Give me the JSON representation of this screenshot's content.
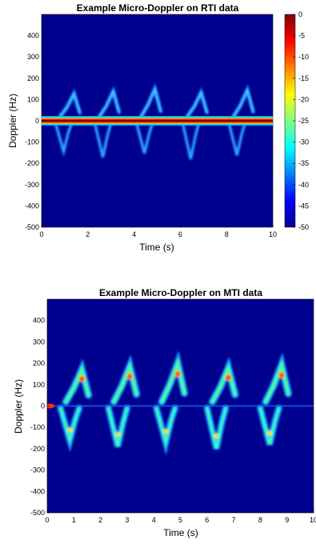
{
  "chart_data": [
    {
      "type": "heatmap",
      "title": "Example Micro-Doppler on RTI data",
      "xlabel": "Time (s)",
      "ylabel": "Doppler (Hz)",
      "xlim": [
        0,
        10
      ],
      "ylim": [
        -500,
        500
      ],
      "xticks": [
        0,
        2,
        4,
        6,
        8,
        10
      ],
      "yticks": [
        -500,
        -400,
        -300,
        -200,
        -100,
        0,
        100,
        200,
        300,
        400
      ],
      "colorbar": {
        "range": [
          -50,
          0
        ],
        "ticks": [
          0,
          -5,
          -10,
          -15,
          -20,
          -25,
          -30,
          -35,
          -40,
          -45,
          -50
        ],
        "colormap": "jet"
      },
      "features": {
        "zero_doppler_band_hz": [
          -10,
          10
        ],
        "gait_peaks_s": [
          1.4,
          3.1,
          4.9,
          6.9,
          8.9
        ],
        "peak_doppler_hz": 150,
        "trough_doppler_hz": -180
      }
    },
    {
      "type": "heatmap",
      "title": "Example Micro-Doppler on MTI data",
      "xlabel": "Time (s)",
      "ylabel": "Doppler (Hz)",
      "xlim": [
        0,
        10
      ],
      "ylim": [
        -500,
        500
      ],
      "xticks": [
        0,
        1,
        2,
        3,
        4,
        5,
        6,
        7,
        8,
        9,
        10
      ],
      "yticks": [
        -500,
        -400,
        -300,
        -200,
        -100,
        0,
        100,
        200,
        300,
        400
      ],
      "features": {
        "gait_peaks_s": [
          1.3,
          3.1,
          4.9,
          6.8,
          8.8
        ],
        "peak_doppler_hz": 200,
        "trough_doppler_hz": -200
      }
    }
  ],
  "colors": {
    "background": "#00008f",
    "zero_band": "#ff2000"
  }
}
